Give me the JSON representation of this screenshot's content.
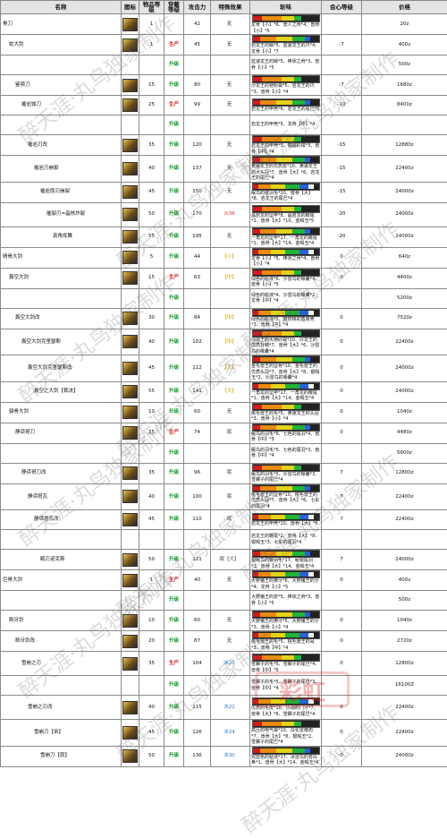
{
  "headers": {
    "name": "名称",
    "icon": "图标",
    "rarity": "物品等级",
    "forge_level": "穿戴等级",
    "attack": "攻击力",
    "special": "特殊效果",
    "sharpness": "斩味",
    "affinity": "会心等级",
    "price": "价格"
  },
  "rows": [
    {
      "h": 1,
      "indent": 0,
      "name": "骨刀",
      "rarity": "1",
      "method": "",
      "attack": "42",
      "special": "无",
      "materials": "龙骨【小】*6、兽人之骨*4、兽骨【小】*5",
      "affinity": "",
      "price": "20z"
    },
    {
      "h": 2,
      "indent": 1,
      "name": "蛇大剑",
      "rarity": "1",
      "method": "生产",
      "attack": "45",
      "special": "无",
      "materials": "岩龙王的鳞*5、蓝速龙王的爪*4、龙骨【小】*7",
      "affinity": "-7",
      "price": "400z"
    },
    {
      "h": 2,
      "indent": 1,
      "name": "",
      "rarity": "",
      "method": "升级",
      "attack": "",
      "special": "",
      "materials": "蓝速龙王的鳞*5、棒状之骨*3、兽骨【小】*5",
      "affinity": "",
      "price": "500z"
    },
    {
      "h": 2,
      "indent": 2,
      "name": "鉴颚刀",
      "rarity": "15",
      "method": "升级",
      "attack": "80",
      "special": "无",
      "materials": "沙龙王的铠粉袋*5、岩龙王的爪*3、兽骨【小】*4",
      "affinity": "-7",
      "price": "1680z"
    },
    {
      "h": 2,
      "indent": 3,
      "name": "摧岩蚀刀",
      "rarity": "25",
      "method": "生产",
      "attack": "99",
      "special": "无",
      "materials": "岩龙王的甲壳*6、岩龙王的尾巴*5",
      "affinity": "-10",
      "price": "8400z"
    },
    {
      "h": 2,
      "indent": 3,
      "name": "",
      "rarity": "",
      "method": "升级",
      "attack": "",
      "special": "",
      "materials": "岩龙王的甲壳*5、龙骨【中】*4",
      "affinity": "",
      "price": ""
    },
    {
      "h": 2,
      "indent": 4,
      "name": "摧岩刃改",
      "rarity": "35",
      "method": "升级",
      "attack": "120",
      "special": "无",
      "materials": "岩龙王的甲壳*5、镰鼬的钳*3、兽骨【中】*4",
      "affinity": "-15",
      "price": "12880z"
    },
    {
      "h": 3,
      "indent": 5,
      "name": "摧岩刃崩裂",
      "rarity": "40",
      "method": "升级",
      "attack": "137",
      "special": "无",
      "materials": "黄速龙王的优质皮*10、黄速龙王的大头冠*7、兽骨【大】*6、岩龙王的尾巴*4",
      "affinity": "-15",
      "price": "22400z"
    },
    {
      "h": 2,
      "indent": 6,
      "name": "摧岩厚刃崩裂",
      "rarity": "45",
      "method": "升级",
      "attack": "150",
      "special": "无",
      "materials": "眠鸟的催羽毛*10、兽骨【大】*8、岩龙王的尾巴*4",
      "affinity": "-15",
      "price": "24000z"
    },
    {
      "h": 3,
      "indent": 7,
      "name": "摧裂刃=晶核炸裂",
      "rarity": "50",
      "method": "升级",
      "attack": "170",
      "special": "火36",
      "materials": "晶岩龙的坚甲*8、晶岩龙的鞭尾*1、兽骨【大】*10、金暍玉*5",
      "affinity": "-20",
      "price": "24000z"
    },
    {
      "h": 2,
      "indent": 8,
      "name": "真角挥舞",
      "rarity": "55",
      "method": "升级",
      "attack": "195",
      "special": "无",
      "materials": "一角龙的坚甲*17、一角龙的鞭尾*1、兽骨【大】*14、金暍玉*4",
      "affinity": "-20",
      "price": "24000z"
    },
    {
      "h": 2,
      "indent": 0,
      "name": "晴骨大剑",
      "rarity": "5",
      "method": "升级",
      "attack": "44",
      "special": "【小】",
      "materials": "龙骨【小】*5、棒状之骨*4、兽骨【小】*4",
      "affinity": "0",
      "price": "640z"
    },
    {
      "h": 2,
      "indent": 1,
      "name": "轰空大剑",
      "rarity": "15",
      "method": "生产",
      "attack": "63",
      "special": "【中】",
      "materials": "绿色的粘液*6、沙雷鸟的喙囊*4、兽骨【小】*5",
      "affinity": "0",
      "price": "4400z"
    },
    {
      "h": 2,
      "indent": 1,
      "name": "",
      "rarity": "",
      "method": "升级",
      "attack": "",
      "special": "",
      "materials": "绿色的粘液*4、沙雷鸟的喙囊*2、龙骨【中】*4",
      "affinity": "",
      "price": "5200z"
    },
    {
      "h": 2,
      "indent": 2,
      "name": "轰空大剑改",
      "rarity": "30",
      "method": "升级",
      "attack": "84",
      "special": "【中】",
      "materials": "绿色的粘液*5、鼓狩锋的盾肩壳*3、兽骨【中】*4",
      "affinity": "0",
      "price": "7520z"
    },
    {
      "h": 2,
      "indent": 3,
      "name": "轰空大剑克里瑟斯",
      "rarity": "40",
      "method": "升级",
      "attack": "102",
      "special": "【中】",
      "materials": "沙龙王的大铠砂袋*10、沙龙王的优质背鳍*7、兽骨【大】*6、沙雷鸟的喙囊*4",
      "affinity": "0",
      "price": "22400z"
    },
    {
      "h": 3,
      "indent": 4,
      "name": "轰空大剑克里瑟斯改",
      "rarity": "45",
      "method": "升级",
      "attack": "112",
      "special": "【大】",
      "materials": "金毛兽王的坚骨*10、金毛兽王的优质头冠*7、兽骨【大】*8、银暍玉*2、沙雷鸟的喙囊*4",
      "affinity": "0",
      "price": "24000z"
    },
    {
      "h": 2,
      "indent": 5,
      "name": "轰空之大剑【裁决】",
      "rarity": "55",
      "method": "升级",
      "attack": "141",
      "special": "【大】",
      "materials": "一角龙的坚甲*17、一角龙的鞭尾*1、兽骨【大】*14、金暍玉*4",
      "affinity": "0",
      "price": "24000z"
    },
    {
      "h": 2,
      "indent": 1,
      "name": "骏骨大剑",
      "rarity": "10",
      "method": "升级",
      "attack": "60",
      "special": "无",
      "materials": "桃毛兽王的毛*5、黄速龙王的头冠*3、兽骨【小】*4",
      "affinity": "0",
      "price": "1040z"
    },
    {
      "h": 2,
      "indent": 2,
      "name": "静谛哥刀",
      "rarity": "25",
      "method": "生产",
      "attack": "74",
      "special": "眠",
      "materials": "眠鸟的羽毛*6、七色的尾羽*4、兽骨【中】*5",
      "affinity": "0",
      "price": "4480z"
    },
    {
      "h": 2,
      "indent": 2,
      "name": "",
      "rarity": "",
      "method": "升级",
      "attack": "",
      "special": "",
      "materials": "眠鸟的羽毛*5、七色的尾羽*3、兽骨【中】*4",
      "affinity": "",
      "price": "5600z"
    },
    {
      "h": 2,
      "indent": 3,
      "name": "静谛哥刀改",
      "rarity": "35",
      "method": "升级",
      "attack": "96",
      "special": "眠",
      "materials": "眠鸟的羽毛*5、沙雷鸟的喙囊*3、雪獅子的尾巴*4",
      "affinity": "7",
      "price": "12800z"
    },
    {
      "h": 3,
      "indent": 4,
      "name": "静谛塔瓦",
      "rarity": "40",
      "method": "升级",
      "attack": "100",
      "special": "眠",
      "materials": "桃毛兽王的坚骨*10、桃毛兽王的优质头冠*7、兽骨【大】*6、七彩的尾羽*4",
      "affinity": "7",
      "price": "22400z"
    },
    {
      "h": 2,
      "indent": 5,
      "name": "静谛塔瓦改",
      "rarity": "45",
      "method": "升级",
      "attack": "110",
      "special": "眠",
      "materials": "岩龙王的甲壳*10、兽骨【大】*6",
      "affinity": "7",
      "price": "22400z"
    },
    {
      "h": 2,
      "indent": 6,
      "name": "",
      "rarity": "",
      "method": "",
      "attack": "",
      "special": "",
      "materials": "岩龙王的鞭尾*2、兽骨【大】*8、银暍玉*3、七彩的尾羽*4",
      "affinity": "",
      "price": ""
    },
    {
      "h": 2,
      "indent": 6,
      "name": "眠刃诺克斯",
      "rarity": "50",
      "method": "升级",
      "attack": "121",
      "special": "眠【大】",
      "materials": "银眠鸟的银羽毛*17、秘银尾羽*1、兽骨【大】*14、金暍玉*4",
      "affinity": "7",
      "price": "24000z"
    },
    {
      "h": 2,
      "indent": 0,
      "name": "巨骨大剑",
      "rarity": "1",
      "method": "生产",
      "attack": "40",
      "special": "无",
      "materials": "大野猪王的獠牙*6、大野猪王的牙*4、龙骨【小】*5",
      "affinity": "0",
      "price": "400z"
    },
    {
      "h": 2,
      "indent": 0,
      "name": "",
      "rarity": "",
      "method": "升级",
      "attack": "",
      "special": "",
      "materials": "大野猪王的皮*5、棒状之骨*3、兽骨【小】*5",
      "affinity": "",
      "price": "500z"
    },
    {
      "h": 2,
      "indent": 1,
      "name": "断牙剑",
      "rarity": "10",
      "method": "升级",
      "attack": "60",
      "special": "无",
      "materials": "大野猪王的獠牙*5、大野猪王的牙*3、兽骨【小】*4",
      "affinity": "0",
      "price": "1040z"
    },
    {
      "h": 2,
      "indent": 2,
      "name": "断牙剑改",
      "rarity": "20",
      "method": "升级",
      "attack": "87",
      "special": "无",
      "materials": "桃毛兽王的毛*5、桃毛兽王的耳*3、兽骨【中】*4",
      "affinity": "0",
      "price": "2720z"
    },
    {
      "h": 3,
      "indent": 3,
      "name": "雪崩之刃",
      "rarity": "35",
      "method": "生产",
      "attack": "104",
      "special": "冰20",
      "materials": "雪獅子的毛*6、雪獅子的尾巴*4、兽骨【中】*5",
      "affinity": "0",
      "price": "12800z"
    },
    {
      "h": 2,
      "indent": 3,
      "name": "",
      "rarity": "",
      "method": "升级",
      "attack": "",
      "special": "",
      "materials": "雪獅子的毛*5、雪獅子的尾巴*3、兽骨【中】*4",
      "affinity": "",
      "price": "16100Z"
    },
    {
      "h": 3,
      "indent": 4,
      "name": "雪崩之刃改",
      "rarity": "40",
      "method": "升级",
      "attack": "115",
      "special": "冰22",
      "materials": "优质的毛皮*10、历战的门牙*7、兽骨【大】*6、雪獅子的尾巴*4",
      "affinity": "0",
      "price": "22400z"
    },
    {
      "h": 3,
      "indent": 5,
      "name": "雪崩刀【帝】",
      "rarity": "45",
      "method": "升级",
      "attack": "126",
      "special": "冰24",
      "materials": "高压的电气袋*10、白化雷降肉*7、兽骨【大】*8、银暍玉*2、雪獅子的尾巴*4",
      "affinity": "0",
      "price": "22400z"
    },
    {
      "h": 2,
      "indent": 6,
      "name": "雪崩刀【寂】",
      "rarity": "50",
      "method": "升级",
      "attack": "136",
      "special": "冰30",
      "materials": "完蓝色的粘液*17、冰雷鸟的苍白鼻*1、兽骨【大】*14、金暍玉*4",
      "affinity": "0",
      "price": "24000z"
    }
  ],
  "watermark_text": "醉天涯·丸鸟独家制作",
  "logo_text": "彩虹",
  "colors": {
    "produce": "#d61a1a",
    "upgrade": "#0a9c2a",
    "header_bg": "#e4e4e4",
    "sharp_red": "#d01c1c",
    "sharp_orange": "#e98a12",
    "sharp_yellow": "#e3d21a",
    "sharp_green": "#22b33a",
    "sharp_blue": "#2a62d6",
    "sharp_white": "#f2f2f2"
  }
}
